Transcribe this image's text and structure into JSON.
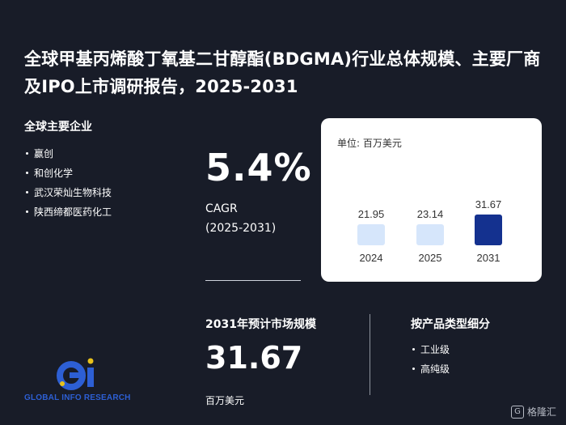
{
  "title": "全球甲基丙烯酸丁氧基二甘醇酯(BDGMA)行业总体规模、主要厂商及IPO上市调研报告，2025-2031",
  "companies": {
    "heading": "全球主要企业",
    "items": [
      "赢创",
      "和创化学",
      "武汉荣灿生物科技",
      "陕西缔都医药化工"
    ]
  },
  "cagr": {
    "value": "5.4%",
    "label": "CAGR",
    "period": "(2025-2031)"
  },
  "chart": {
    "unit_label": "单位: 百万美元"
  },
  "chart_data": {
    "type": "bar",
    "categories": [
      "2024",
      "2025",
      "2031"
    ],
    "values": [
      21.95,
      23.14,
      31.67
    ],
    "value_labels": [
      "21.95",
      "23.14",
      "31.67"
    ],
    "colors": [
      "#d6e6fb",
      "#d6e6fb",
      "#14318f"
    ],
    "title": "",
    "xlabel": "",
    "ylabel": "单位: 百万美元"
  },
  "market": {
    "heading": "2031年预计市场规模",
    "value": "31.67",
    "unit": "百万美元"
  },
  "product_types": {
    "heading": "按产品类型细分",
    "items": [
      "工业级",
      "高纯级"
    ]
  },
  "logo": {
    "text": "GLOBAL INFO RESEARCH"
  },
  "watermark": {
    "text": "格隆汇"
  }
}
